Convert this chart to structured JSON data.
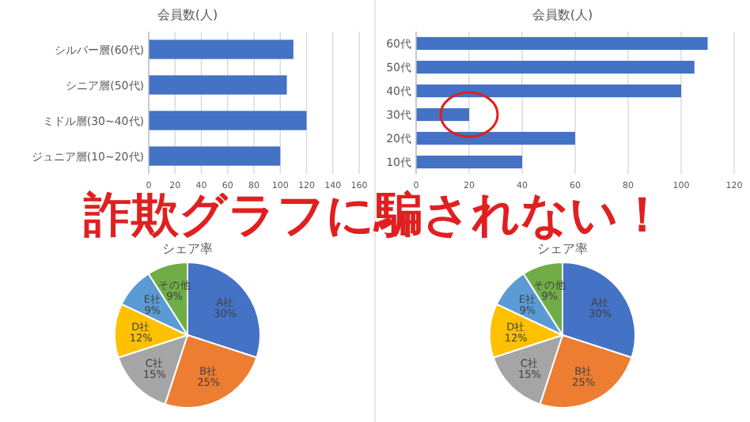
{
  "chart_data": [
    {
      "type": "bar",
      "orientation": "horizontal",
      "title": "会員数(人)",
      "categories": [
        "シルバー層(60代)",
        "シニア層(50代)",
        "ミドル層(30~40代)",
        "ジュニア層(10~20代)"
      ],
      "values": [
        110,
        105,
        120,
        100
      ],
      "color": "#4472c4",
      "xlim": [
        0,
        160
      ],
      "xticks": [
        0,
        20,
        40,
        60,
        80,
        100,
        120,
        140,
        160
      ],
      "grid": "x"
    },
    {
      "type": "bar",
      "orientation": "horizontal",
      "title": "会員数(人)",
      "categories": [
        "60代",
        "50代",
        "40代",
        "30代",
        "20代",
        "10代"
      ],
      "values": [
        110,
        105,
        100,
        20,
        60,
        40
      ],
      "color": "#4472c4",
      "xlim": [
        0,
        120
      ],
      "xticks": [
        0,
        20,
        40,
        60,
        80,
        100,
        120
      ],
      "grid": "x"
    },
    {
      "type": "pie",
      "title": "シェア率",
      "categories": [
        "A社",
        "B社",
        "C社",
        "D社",
        "E社",
        "その他"
      ],
      "values": [
        30,
        25,
        15,
        12,
        9,
        9
      ],
      "colors": [
        "#4472c4",
        "#ed7d31",
        "#a5a5a5",
        "#ffc000",
        "#5b9bd5",
        "#70ad47"
      ],
      "value_labels": [
        "30%",
        "25%",
        "15%",
        "12%",
        "9%",
        "9%"
      ]
    },
    {
      "type": "pie",
      "title": "シェア率",
      "categories": [
        "A社",
        "B社",
        "C社",
        "D社",
        "E社",
        "その他"
      ],
      "values": [
        30,
        25,
        15,
        12,
        9,
        9
      ],
      "colors": [
        "#4472c4",
        "#ed7d31",
        "#a5a5a5",
        "#ffc000",
        "#5b9bd5",
        "#70ad47"
      ],
      "value_labels": [
        "30%",
        "25%",
        "15%",
        "12%",
        "9%",
        "9%"
      ]
    },
    {
      "type": "other",
      "title": "詐欺グラフに騙されない！"
    }
  ]
}
